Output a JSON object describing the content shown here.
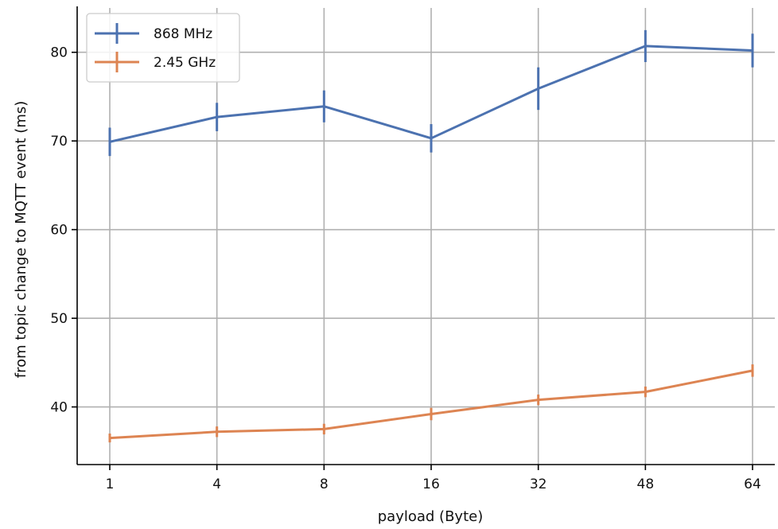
{
  "chart_data": {
    "type": "line",
    "title": "",
    "xlabel": "payload (Byte)",
    "ylabel": "from topic change to MQTT event (ms)",
    "categories": [
      "1",
      "4",
      "8",
      "16",
      "32",
      "48",
      "64"
    ],
    "ylim": [
      33.5,
      85
    ],
    "yticks": [
      40,
      50,
      60,
      70,
      80
    ],
    "grid": true,
    "legend_position": "top-left",
    "series": [
      {
        "name": "868 MHz",
        "color": "#4c72b0",
        "values": [
          69.9,
          72.7,
          73.9,
          70.3,
          75.9,
          80.7,
          80.2
        ],
        "errors": [
          1.6,
          1.6,
          1.8,
          1.6,
          2.4,
          1.8,
          1.9
        ]
      },
      {
        "name": "2.45 GHz",
        "color": "#dd8452",
        "values": [
          36.5,
          37.2,
          37.5,
          39.2,
          40.8,
          41.7,
          44.1
        ],
        "errors": [
          0.5,
          0.6,
          0.6,
          0.7,
          0.6,
          0.6,
          0.7
        ]
      }
    ]
  }
}
